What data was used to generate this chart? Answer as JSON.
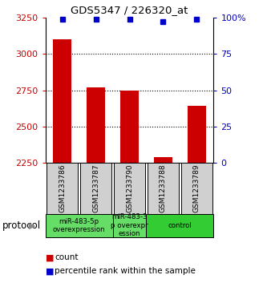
{
  "title": "GDS5347 / 226320_at",
  "samples": [
    "GSM1233786",
    "GSM1233787",
    "GSM1233790",
    "GSM1233788",
    "GSM1233789"
  ],
  "counts": [
    3100,
    2770,
    2750,
    2290,
    2640
  ],
  "percentiles": [
    99,
    99,
    99,
    97,
    99
  ],
  "ylim_left": [
    2250,
    3250
  ],
  "ylim_right": [
    0,
    100
  ],
  "yticks_left": [
    2250,
    2500,
    2750,
    3000,
    3250
  ],
  "yticks_right": [
    0,
    25,
    50,
    75,
    100
  ],
  "bar_color": "#cc0000",
  "dot_color": "#0000cc",
  "protocol_labels": [
    {
      "text": "miR-483-5p\noverexpression",
      "start": 0,
      "end": 2,
      "color": "#66dd66"
    },
    {
      "text": "miR-483-3\np overexpr\nession",
      "start": 2,
      "end": 3,
      "color": "#66dd66"
    },
    {
      "text": "control",
      "start": 3,
      "end": 5,
      "color": "#33cc33"
    }
  ],
  "grid_yticks": [
    3000,
    2750,
    2500
  ],
  "ax_label_left_color": "#cc0000",
  "ax_label_right_color": "#0000cc",
  "sample_box_color": "#d0d0d0",
  "legend_count_color": "#cc0000",
  "legend_dot_color": "#0000cc"
}
